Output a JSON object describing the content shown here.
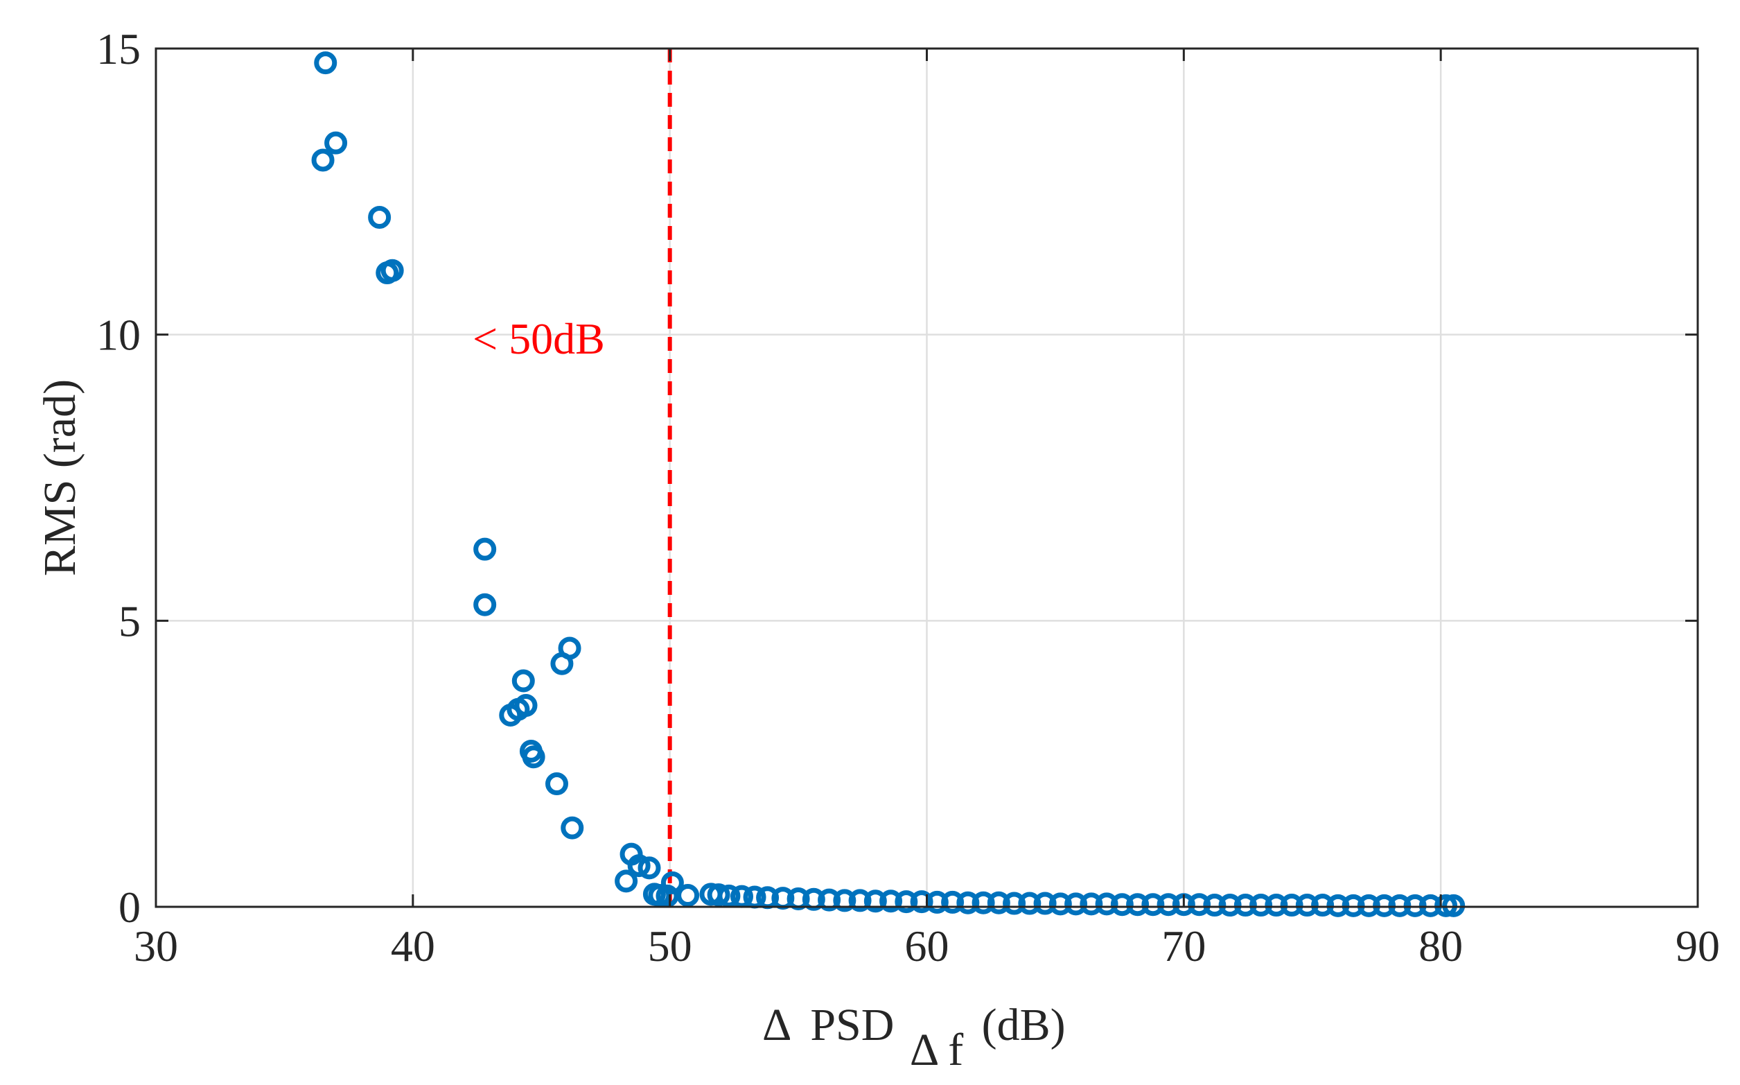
{
  "chart_data": {
    "type": "scatter",
    "title": "",
    "xlabel": {
      "delta": "Δ",
      "main": "PSD",
      "subscript": "Δ f",
      "unit": "(dB)"
    },
    "ylabel": "RMS (rad)",
    "xlim": [
      30,
      90
    ],
    "ylim": [
      0,
      15
    ],
    "xticks": [
      30,
      40,
      50,
      60,
      70,
      80,
      90
    ],
    "yticks": [
      0,
      5,
      10,
      15
    ],
    "xtick_labels": [
      "30",
      "40",
      "50",
      "60",
      "70",
      "80",
      "90"
    ],
    "ytick_labels": [
      "0",
      "5",
      "10",
      "15"
    ],
    "grid": true,
    "colors": {
      "marker": "#0072BD",
      "threshold": "#FF0000",
      "axis": "#262626",
      "grid": "#DFDFDF"
    },
    "threshold": {
      "x": 50,
      "style": "dashed",
      "label": "< 50dB"
    },
    "series": [
      {
        "name": "RMS",
        "marker": "circle-open",
        "points": [
          [
            36.6,
            14.75
          ],
          [
            36.5,
            13.05
          ],
          [
            37.0,
            13.35
          ],
          [
            38.7,
            12.05
          ],
          [
            39.0,
            11.08
          ],
          [
            39.2,
            11.12
          ],
          [
            42.8,
            6.25
          ],
          [
            42.8,
            5.28
          ],
          [
            46.1,
            4.52
          ],
          [
            45.8,
            4.25
          ],
          [
            44.3,
            3.95
          ],
          [
            44.4,
            3.52
          ],
          [
            44.1,
            3.45
          ],
          [
            43.8,
            3.35
          ],
          [
            44.6,
            2.72
          ],
          [
            44.7,
            2.62
          ],
          [
            45.6,
            2.15
          ],
          [
            46.2,
            1.38
          ],
          [
            48.5,
            0.92
          ],
          [
            48.8,
            0.72
          ],
          [
            49.2,
            0.68
          ],
          [
            48.3,
            0.45
          ],
          [
            50.1,
            0.42
          ],
          [
            49.4,
            0.22
          ],
          [
            49.6,
            0.2
          ],
          [
            49.9,
            0.19
          ],
          [
            50.7,
            0.2
          ],
          [
            51.6,
            0.22
          ],
          [
            51.9,
            0.21
          ],
          [
            52.3,
            0.19
          ],
          [
            52.8,
            0.18
          ],
          [
            53.3,
            0.17
          ],
          [
            53.8,
            0.16
          ],
          [
            54.4,
            0.15
          ],
          [
            55.0,
            0.14
          ],
          [
            55.6,
            0.13
          ],
          [
            56.2,
            0.12
          ],
          [
            56.8,
            0.11
          ],
          [
            57.4,
            0.11
          ],
          [
            58.0,
            0.1
          ],
          [
            58.6,
            0.1
          ],
          [
            59.2,
            0.09
          ],
          [
            59.8,
            0.09
          ],
          [
            60.4,
            0.08
          ],
          [
            61.0,
            0.08
          ],
          [
            61.6,
            0.07
          ],
          [
            62.2,
            0.07
          ],
          [
            62.8,
            0.07
          ],
          [
            63.4,
            0.06
          ],
          [
            64.0,
            0.06
          ],
          [
            64.6,
            0.06
          ],
          [
            65.2,
            0.05
          ],
          [
            65.8,
            0.05
          ],
          [
            66.4,
            0.05
          ],
          [
            67.0,
            0.05
          ],
          [
            67.6,
            0.04
          ],
          [
            68.2,
            0.04
          ],
          [
            68.8,
            0.04
          ],
          [
            69.4,
            0.04
          ],
          [
            70.0,
            0.04
          ],
          [
            70.6,
            0.04
          ],
          [
            71.2,
            0.03
          ],
          [
            71.8,
            0.03
          ],
          [
            72.4,
            0.03
          ],
          [
            73.0,
            0.03
          ],
          [
            73.6,
            0.03
          ],
          [
            74.2,
            0.03
          ],
          [
            74.8,
            0.03
          ],
          [
            75.4,
            0.03
          ],
          [
            76.0,
            0.02
          ],
          [
            76.6,
            0.02
          ],
          [
            77.2,
            0.02
          ],
          [
            77.8,
            0.02
          ],
          [
            78.4,
            0.02
          ],
          [
            79.0,
            0.02
          ],
          [
            79.6,
            0.02
          ],
          [
            80.2,
            0.02
          ],
          [
            80.5,
            0.02
          ]
        ]
      }
    ]
  }
}
